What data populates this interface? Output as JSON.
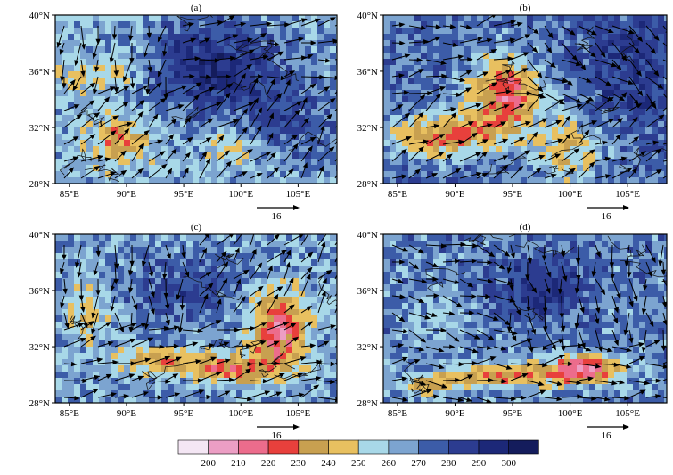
{
  "figure": {
    "panels": [
      {
        "label": "(a)",
        "vector_scale": "16"
      },
      {
        "label": "(b)",
        "vector_scale": "16"
      },
      {
        "label": "(c)",
        "vector_scale": "16"
      },
      {
        "label": "(d)",
        "vector_scale": "16"
      }
    ],
    "y_ticks": [
      "28°N",
      "32°N",
      "36°N",
      "40°N"
    ],
    "x_ticks": [
      "85°E",
      "90°E",
      "95°E",
      "100°E",
      "105°E"
    ],
    "colorbar": {
      "labels": [
        "200",
        "210",
        "220",
        "230",
        "240",
        "250",
        "260",
        "270",
        "280",
        "290",
        "300"
      ],
      "colors": [
        "#f4e6f4",
        "#ec9ec4",
        "#ec6c8c",
        "#e8403c",
        "#c8a050",
        "#e8c060",
        "#a8d8e8",
        "#7ca4d0",
        "#3c5ca8",
        "#2c3c90",
        "#1c2878",
        "#141c5c"
      ]
    }
  }
}
